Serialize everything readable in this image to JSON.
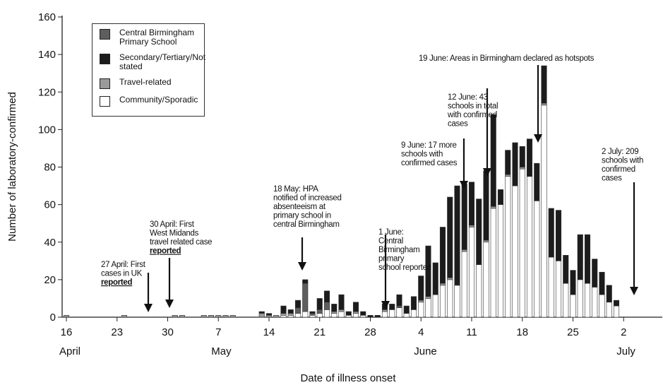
{
  "chart_data": {
    "type": "stacked-bar",
    "y_label": "Number of laboratory-confirmed",
    "x_label": "Date of illness onset",
    "categories": [
      "16",
      null,
      null,
      null,
      null,
      null,
      null,
      "23",
      null,
      null,
      null,
      null,
      null,
      null,
      "30",
      null,
      null,
      null,
      null,
      null,
      null,
      "7",
      null,
      null,
      null,
      null,
      null,
      null,
      "14",
      null,
      null,
      null,
      null,
      null,
      null,
      "21",
      null,
      null,
      null,
      null,
      null,
      null,
      "28",
      null,
      null,
      null,
      null,
      null,
      null,
      "4",
      null,
      null,
      null,
      null,
      null,
      null,
      "11",
      null,
      null,
      null,
      null,
      null,
      null,
      "18",
      null,
      null,
      null,
      null,
      null,
      null,
      "25",
      null,
      null,
      null,
      null,
      null,
      null,
      "2",
      null,
      null
    ],
    "month_labels": [
      "April",
      null,
      null,
      null,
      null,
      null,
      null,
      null,
      null,
      null,
      null,
      null,
      null,
      null,
      null,
      null,
      null,
      null,
      null,
      null,
      null,
      "May",
      null,
      null,
      null,
      null,
      null,
      null,
      null,
      null,
      null,
      null,
      null,
      null,
      null,
      null,
      null,
      null,
      null,
      null,
      null,
      null,
      null,
      null,
      null,
      null,
      null,
      null,
      null,
      "June",
      null,
      null,
      null,
      null,
      null,
      null,
      null,
      null,
      null,
      null,
      null,
      null,
      null,
      null,
      null,
      null,
      null,
      null,
      null,
      null,
      null,
      null,
      null,
      null,
      null,
      null,
      null,
      "July",
      null,
      null
    ],
    "series": [
      {
        "name": "Community/Sporadic",
        "color": "#ffffff",
        "values": [
          0,
          0,
          0,
          0,
          0,
          0,
          0,
          0,
          0,
          0,
          0,
          0,
          0,
          0,
          0,
          0,
          0,
          0,
          0,
          0,
          0,
          0,
          0,
          0,
          0,
          0,
          0,
          0,
          0,
          0,
          1,
          1,
          2,
          3,
          1,
          2,
          4,
          2,
          3,
          1,
          2,
          1,
          0,
          0,
          3,
          4,
          5,
          2,
          4,
          8,
          10,
          12,
          17,
          20,
          17,
          35,
          48,
          28,
          40,
          58,
          60,
          75,
          70,
          79,
          75,
          62,
          113,
          32,
          30,
          18,
          12,
          20,
          18,
          16,
          12,
          8,
          6,
          0,
          0,
          0
        ]
      },
      {
        "name": "Travel-related",
        "color": "#9a9a9a",
        "values": [
          1,
          0,
          0,
          0,
          0,
          0,
          0,
          0,
          1,
          0,
          0,
          0,
          0,
          0,
          0,
          1,
          1,
          0,
          0,
          1,
          1,
          1,
          1,
          1,
          0,
          0,
          0,
          2,
          1,
          1,
          1,
          1,
          0,
          0,
          0,
          0,
          0,
          1,
          1,
          0,
          1,
          0,
          0,
          0,
          1,
          0,
          0,
          0,
          0,
          1,
          1,
          0,
          1,
          1,
          0,
          1,
          1,
          0,
          1,
          1,
          0,
          1,
          0,
          1,
          0,
          0,
          1,
          0,
          0,
          0,
          0,
          0,
          0,
          0,
          0,
          0,
          0,
          0,
          0,
          0
        ]
      },
      {
        "name": "Central Birmingham Primary School",
        "color": "#5e5e5e",
        "values": [
          0,
          0,
          0,
          0,
          0,
          0,
          0,
          0,
          0,
          0,
          0,
          0,
          0,
          0,
          0,
          0,
          0,
          0,
          0,
          0,
          0,
          0,
          0,
          0,
          0,
          0,
          0,
          0,
          0,
          0,
          0,
          0,
          3,
          15,
          1,
          2,
          4,
          0,
          0,
          0,
          0,
          0,
          0,
          0,
          0,
          0,
          1,
          0,
          0,
          0,
          0,
          0,
          0,
          0,
          0,
          0,
          0,
          0,
          0,
          0,
          0,
          0,
          0,
          0,
          0,
          0,
          0,
          0,
          0,
          0,
          0,
          0,
          0,
          0,
          0,
          0,
          0,
          0,
          0,
          0
        ]
      },
      {
        "name": "Secondary/Tertiary/Not stated",
        "color": "#1c1c1c",
        "values": [
          0,
          0,
          0,
          0,
          0,
          0,
          0,
          0,
          0,
          0,
          0,
          0,
          0,
          0,
          0,
          0,
          0,
          0,
          0,
          0,
          0,
          0,
          0,
          0,
          0,
          0,
          0,
          1,
          1,
          0,
          4,
          2,
          4,
          2,
          1,
          6,
          6,
          4,
          8,
          2,
          5,
          2,
          1,
          1,
          3,
          3,
          6,
          4,
          7,
          13,
          27,
          17,
          30,
          43,
          53,
          35,
          23,
          35,
          37,
          49,
          8,
          13,
          23,
          11,
          20,
          20,
          20,
          26,
          27,
          15,
          13,
          24,
          26,
          15,
          12,
          9,
          3,
          0,
          0,
          0
        ]
      }
    ],
    "legend_order": [
      2,
      3,
      1,
      0
    ],
    "ylim": [
      0,
      160
    ],
    "yticks": [
      0,
      20,
      40,
      60,
      80,
      100,
      120,
      140,
      160
    ],
    "annotations": [
      {
        "lines": [
          "27 April: First",
          "cases in UK"
        ],
        "emphasis": "reported"
      },
      {
        "lines": [
          "30 April: First",
          "West Midands",
          "travel related case"
        ],
        "emphasis": "reported"
      },
      {
        "lines": [
          "18 May: HPA",
          "notified of increased",
          "absenteeism at",
          "primary school in",
          "central Birmingham"
        ]
      },
      {
        "lines": [
          "1 June:",
          "Central",
          "Birmingham",
          "primary",
          "school reported"
        ]
      },
      {
        "lines": [
          "9 June: 17 more",
          "schools with",
          "confirmed cases"
        ]
      },
      {
        "lines": [
          "12 June: 43",
          "schools in total",
          "with confirmed",
          "cases"
        ]
      },
      {
        "lines": [
          "19 June: Areas in Birmingham declared as hotspots"
        ]
      },
      {
        "lines": [
          "2 July: 209",
          "schools with",
          "confirmed",
          "cases"
        ]
      }
    ]
  }
}
